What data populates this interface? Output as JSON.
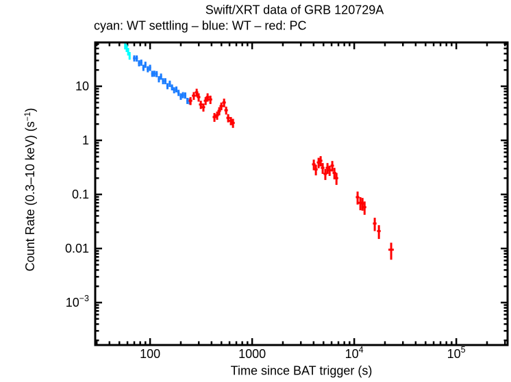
{
  "page": {
    "background": "#ffffff"
  },
  "chart_data": {
    "type": "scatter",
    "title": "Swift/XRT data of GRB 120729A",
    "subtitle": "cyan: WT settling – blue: WT – red: PC",
    "xlabel": "Time since BAT trigger (s)",
    "ylabel": "Count Rate (0.3–10 keV) (s⁻¹)",
    "ylabel_parts": {
      "main": "Count Rate (0.3–10 keV) (s",
      "sup": "−1",
      "close": ")"
    },
    "xscale": "log",
    "yscale": "log",
    "xlim": [
      29,
      318000
    ],
    "ylim": [
      0.000164,
      64.6
    ],
    "grid": false,
    "legend": "in subtitle line",
    "xticks": [
      {
        "value": 100,
        "base": "100",
        "sup": ""
      },
      {
        "value": 1000,
        "base": "1000",
        "sup": ""
      },
      {
        "value": 10000,
        "base": "10",
        "sup": "4"
      },
      {
        "value": 100000,
        "base": "10",
        "sup": "5"
      }
    ],
    "yticks": [
      {
        "value": 10,
        "base": "10",
        "sup": ""
      },
      {
        "value": 1,
        "base": "1",
        "sup": ""
      },
      {
        "value": 0.1,
        "base": "0.1",
        "sup": ""
      },
      {
        "value": 0.01,
        "base": "0.01",
        "sup": ""
      },
      {
        "value": 0.001,
        "base": "10",
        "sup": "−3"
      }
    ],
    "colors": {
      "wt_settling": "#00ffff",
      "wt": "#1a7cff",
      "pc": "#ff0000"
    },
    "series": [
      {
        "name": "WT settling",
        "mode": "XRT settling",
        "color": "#00ffff",
        "points_format": [
          "time_s",
          "time_err_s",
          "rate_cps",
          "rate_err_cps"
        ],
        "points": [
          [
            57,
            1,
            57,
            9
          ],
          [
            59,
            1,
            51,
            8
          ],
          [
            61,
            1,
            44,
            7
          ],
          [
            63,
            1,
            37,
            6
          ]
        ]
      },
      {
        "name": "WT",
        "mode": "Windowed Timing",
        "color": "#1a7cff",
        "points_format": [
          "time_s",
          "time_err_s",
          "rate_cps",
          "rate_err_cps"
        ],
        "points": [
          [
            70,
            2,
            33.0,
            4.3
          ],
          [
            74,
            2,
            32.9,
            4.3
          ],
          [
            78,
            2,
            26.8,
            3.5
          ],
          [
            82,
            2,
            27.5,
            3.6
          ],
          [
            86,
            2,
            22.1,
            2.9
          ],
          [
            90,
            2,
            25.2,
            3.3
          ],
          [
            95,
            2.4,
            20.8,
            2.7
          ],
          [
            100,
            2.5,
            22.1,
            2.9
          ],
          [
            105,
            2.6,
            17.1,
            2.2
          ],
          [
            110,
            2.8,
            17.2,
            2.2
          ],
          [
            116,
            2.9,
            16.9,
            2.2
          ],
          [
            122,
            3,
            13.6,
            1.8
          ],
          [
            128,
            3.2,
            15.2,
            2.0
          ],
          [
            134,
            3.4,
            12.5,
            1.6
          ],
          [
            141,
            3.5,
            12.5,
            1.6
          ],
          [
            148,
            3.7,
            10.1,
            1.3
          ],
          [
            156,
            3.9,
            11.2,
            1.5
          ],
          [
            164,
            4.1,
            9.6,
            1.2
          ],
          [
            172,
            4.3,
            8.5,
            1.1
          ],
          [
            181,
            4.5,
            8.8,
            1.1
          ],
          [
            190,
            4.8,
            7.6,
            1.0
          ],
          [
            200,
            5,
            6.5,
            0.9
          ],
          [
            210,
            5.3,
            6.9,
            0.9
          ],
          [
            221,
            5.5,
            6.8,
            0.9
          ],
          [
            232,
            5.8,
            5.4,
            0.7
          ],
          [
            244,
            6,
            5.3,
            0.7
          ]
        ]
      },
      {
        "name": "PC",
        "mode": "Photon Counting",
        "color": "#ff0000",
        "points_format": [
          "time_s",
          "time_err_s",
          "rate_cps",
          "rate_err_cps"
        ],
        "points": [
          [
            249,
            10,
            5.4,
            0.9
          ],
          [
            268,
            11,
            6.7,
            1.1
          ],
          [
            286,
            11,
            7.7,
            1.3
          ],
          [
            299,
            12,
            6.3,
            1.1
          ],
          [
            314,
            13,
            4.6,
            0.8
          ],
          [
            333,
            13,
            4.1,
            0.7
          ],
          [
            350,
            14,
            5.4,
            0.9
          ],
          [
            366,
            15,
            6.3,
            1.1
          ],
          [
            390,
            16,
            5.7,
            1.0
          ],
          [
            427,
            17,
            2.7,
            0.5
          ],
          [
            454,
            18,
            2.9,
            0.5
          ],
          [
            476,
            19,
            3.5,
            0.6
          ],
          [
            499,
            20,
            4.3,
            0.7
          ],
          [
            531,
            21,
            5.0,
            0.9
          ],
          [
            556,
            22,
            3.6,
            0.6
          ],
          [
            582,
            23,
            2.6,
            0.45
          ],
          [
            619,
            25,
            2.3,
            0.4
          ],
          [
            649,
            26,
            2.1,
            0.4
          ],
          [
            4018,
            160,
            0.36,
            0.08
          ],
          [
            4210,
            170,
            0.29,
            0.065
          ],
          [
            4477,
            180,
            0.39,
            0.085
          ],
          [
            4689,
            190,
            0.42,
            0.09
          ],
          [
            4909,
            200,
            0.31,
            0.07
          ],
          [
            5212,
            210,
            0.24,
            0.055
          ],
          [
            5470,
            220,
            0.31,
            0.07
          ],
          [
            5740,
            230,
            0.28,
            0.06
          ],
          [
            6095,
            240,
            0.34,
            0.075
          ],
          [
            6395,
            260,
            0.25,
            0.06
          ],
          [
            6699,
            270,
            0.2,
            0.05
          ],
          [
            10790,
            430,
            0.089,
            0.024
          ],
          [
            11490,
            460,
            0.07,
            0.019
          ],
          [
            12050,
            480,
            0.068,
            0.018
          ],
          [
            12630,
            500,
            0.058,
            0.016
          ],
          [
            15890,
            640,
            0.029,
            0.008
          ],
          [
            17450,
            700,
            0.021,
            0.006
          ],
          [
            23010,
            1400,
            0.0095,
            0.0033
          ]
        ]
      }
    ]
  }
}
